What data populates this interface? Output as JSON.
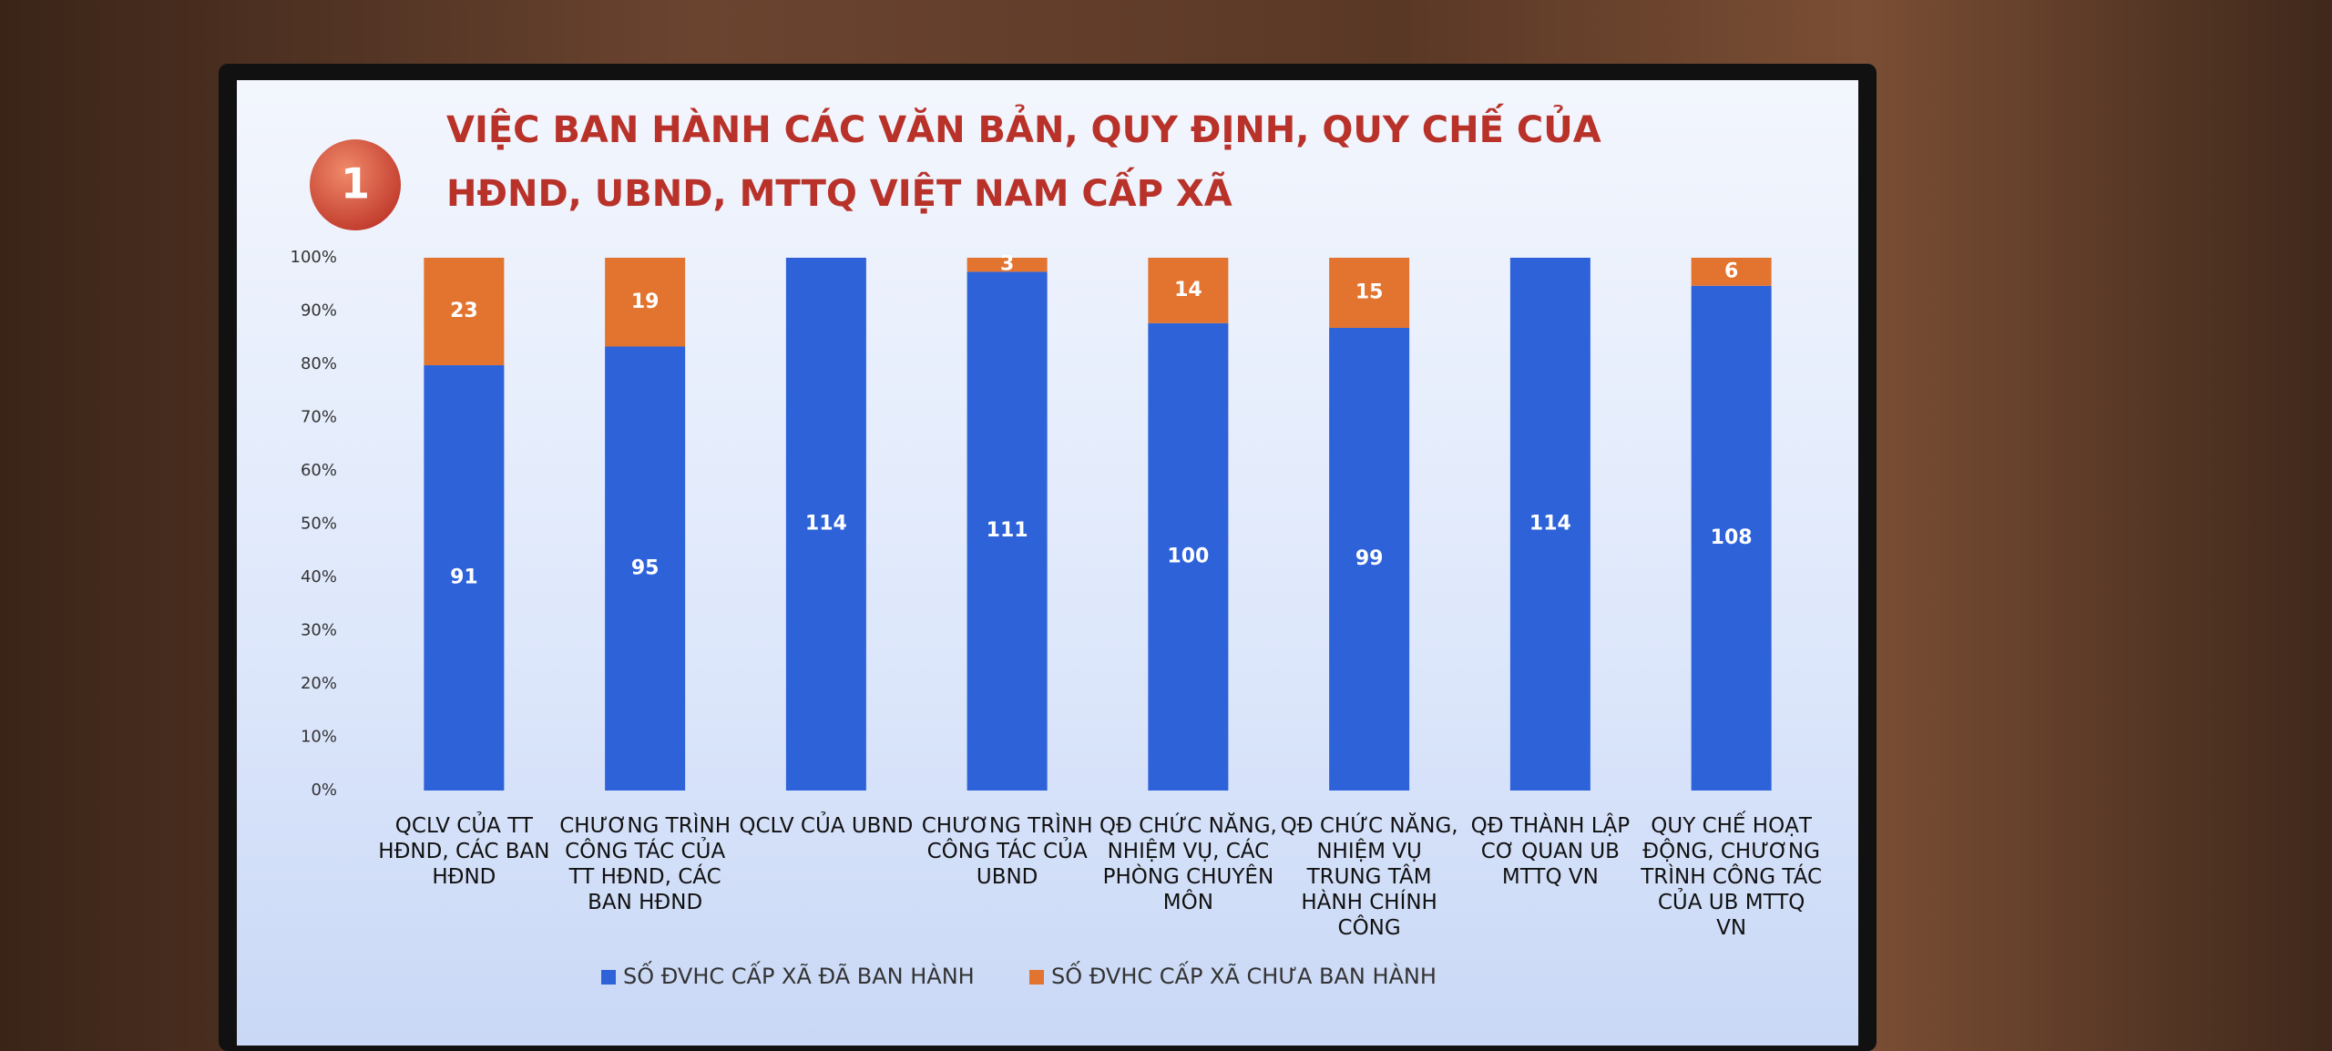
{
  "chart_data": {
    "type": "bar",
    "stacked": true,
    "normalized": true,
    "badge": "1",
    "title": "VIỆC BAN HÀNH CÁC VĂN BẢN, QUY ĐỊNH, QUY CHẾ CỦA HĐND, UBND, MTTQ VIỆT NAM CẤP XÃ",
    "categories": [
      "QCLV CỦA TT HĐND, CÁC BAN HĐND",
      "CHƯƠNG TRÌNH CÔNG TÁC CỦA TT HĐND, CÁC BAN HĐND",
      "QCLV CỦA UBND",
      "CHƯƠNG TRÌNH CÔNG TÁC CỦA UBND",
      "QĐ CHỨC NĂNG, NHIỆM VỤ, CÁC PHÒNG CHUYÊN MÔN",
      "QĐ CHỨC NĂNG, NHIỆM VỤ TRUNG TÂM HÀNH CHÍNH CÔNG",
      "QĐ THÀNH LẬP CƠ QUAN UB MTTQ VN",
      "QUY CHẾ HOẠT ĐỘNG, CHƯƠNG TRÌNH CÔNG TÁC CỦA UB MTTQ VN"
    ],
    "series": [
      {
        "name": "SỐ ĐVHC CẤP XÃ ĐÃ BAN HÀNH",
        "color": "#2e62d9",
        "values": [
          91,
          95,
          114,
          111,
          100,
          99,
          114,
          108
        ]
      },
      {
        "name": "SỐ ĐVHC CẤP XÃ CHƯA BAN HÀNH",
        "color": "#e2742f",
        "values": [
          23,
          19,
          0,
          3,
          14,
          15,
          0,
          6
        ]
      }
    ],
    "ylim": [
      0,
      100
    ],
    "yticks": [
      {
        "value": 0,
        "label": "0%"
      },
      {
        "value": 10,
        "label": "10%"
      },
      {
        "value": 20,
        "label": "20%"
      },
      {
        "value": 30,
        "label": "30%"
      },
      {
        "value": 40,
        "label": "40%"
      },
      {
        "value": 50,
        "label": "50%"
      },
      {
        "value": 60,
        "label": "60%"
      },
      {
        "value": 70,
        "label": "70%"
      },
      {
        "value": 80,
        "label": "80%"
      },
      {
        "value": 90,
        "label": "90%"
      },
      {
        "value": 100,
        "label": "100%"
      }
    ],
    "grid": false,
    "legend": "bottom"
  }
}
